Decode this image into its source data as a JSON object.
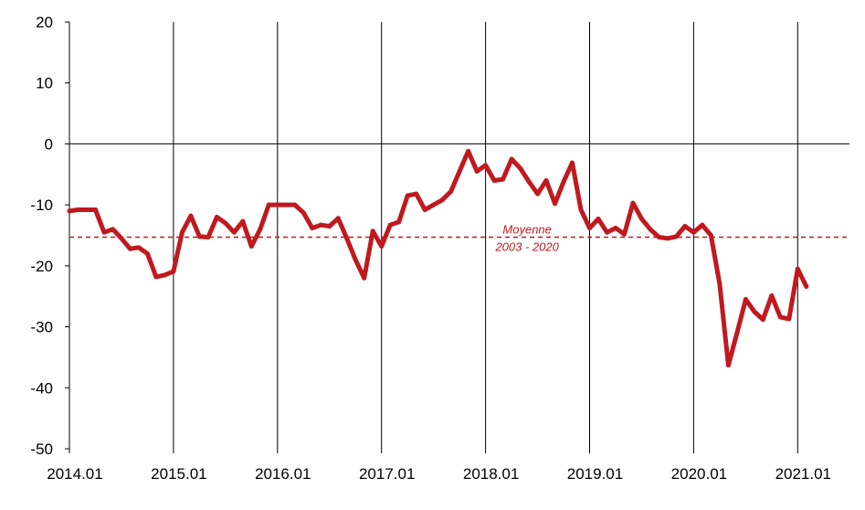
{
  "chart_data": {
    "type": "line",
    "title": "",
    "xlabel": "",
    "ylabel": "",
    "ylim": [
      -50,
      20
    ],
    "yticks": [
      20,
      10,
      0,
      -10,
      -20,
      -30,
      -40,
      -50
    ],
    "xtick_labels": [
      "2014.01",
      "2015.01",
      "2016.01",
      "2017.01",
      "2018.01",
      "2019.01",
      "2020.01",
      "2021.01"
    ],
    "grid": "vertical lines at each year",
    "colors": {
      "series": "#c0191f",
      "axis": "#000000"
    },
    "series": [
      {
        "values": [
          -11,
          -10.8,
          -10.8,
          -10.8,
          -14.5,
          -14,
          -15.5,
          -17.2,
          -17,
          -18,
          -21.8,
          -21.5,
          -20.9,
          -14.5,
          -11.8,
          -15.2,
          -15.3,
          -12,
          -13,
          -14.5,
          -12.7,
          -16.8,
          -14,
          -10,
          -10,
          -10,
          -10,
          -11.3,
          -13.8,
          -13.3,
          -13.5,
          -12.2,
          -15.5,
          -19,
          -22,
          -14.3,
          -16.8,
          -13.3,
          -12.8,
          -8.5,
          -8.2,
          -10.8,
          -10,
          -9.2,
          -7.8,
          -4.5,
          -1.2,
          -4.5,
          -3.5,
          -6,
          -5.8,
          -2.5,
          -4,
          -6.2,
          -8.2,
          -6,
          -9.8,
          -6.2,
          -3.1,
          -10.8,
          -13.8,
          -12.3,
          -14.5,
          -13.8,
          -14.8,
          -9.7,
          -12.3,
          -14,
          -15.3,
          -15.5,
          -15.2,
          -13.5,
          -14.5,
          -13.3,
          -15,
          -23,
          -36.3,
          -31,
          -25.5,
          -27.5,
          -28.8,
          -24.9,
          -28.4,
          -28.7,
          -20.5,
          -23.4
        ]
      }
    ],
    "reference_line": {
      "value": -15.3,
      "label_line1": "Moyenne",
      "label_line2": "2003 - 2020"
    }
  }
}
